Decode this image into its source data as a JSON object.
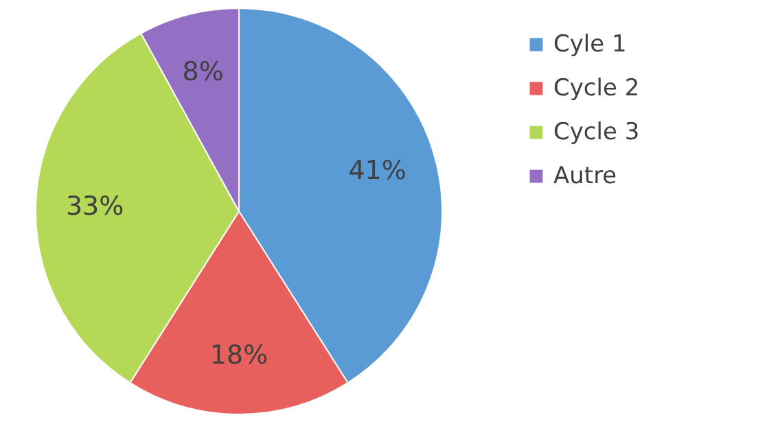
{
  "chart_data": {
    "type": "pie",
    "categories": [
      "Cyle 1",
      "Cycle 2",
      "Cycle 3",
      "Autre"
    ],
    "values": [
      41,
      18,
      33,
      8
    ],
    "colors": [
      "#5b9bd5",
      "#e8605e",
      "#b3d957",
      "#9470c4"
    ],
    "value_labels": [
      "41%",
      "18%",
      "33%",
      "8%"
    ],
    "legend": "right"
  }
}
